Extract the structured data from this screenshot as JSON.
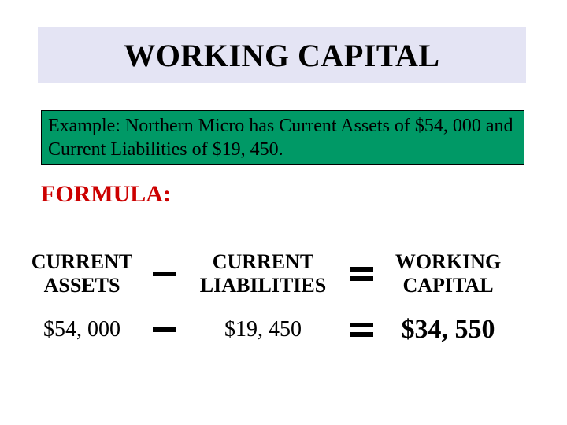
{
  "title": "WORKING CAPITAL",
  "example": "Example: Northern Micro has Current Assets of $54, 000 and Current Liabilities of $19, 450.",
  "formula_label": "FORMULA:",
  "formula": {
    "term1_line1": "CURRENT",
    "term1_line2": "ASSETS",
    "term2_line1": "CURRENT",
    "term2_line2": "LIABILITIES",
    "term3_line1": "WORKING",
    "term3_line2": "CAPITAL"
  },
  "values": {
    "current_assets": "$54, 000",
    "current_liabilities": "$19, 450",
    "working_capital": "$34, 550"
  },
  "colors": {
    "title_bg": "#e4e4f4",
    "example_bg": "#009966",
    "formula_label": "#cc0000",
    "text": "#000000",
    "background": "#ffffff"
  }
}
